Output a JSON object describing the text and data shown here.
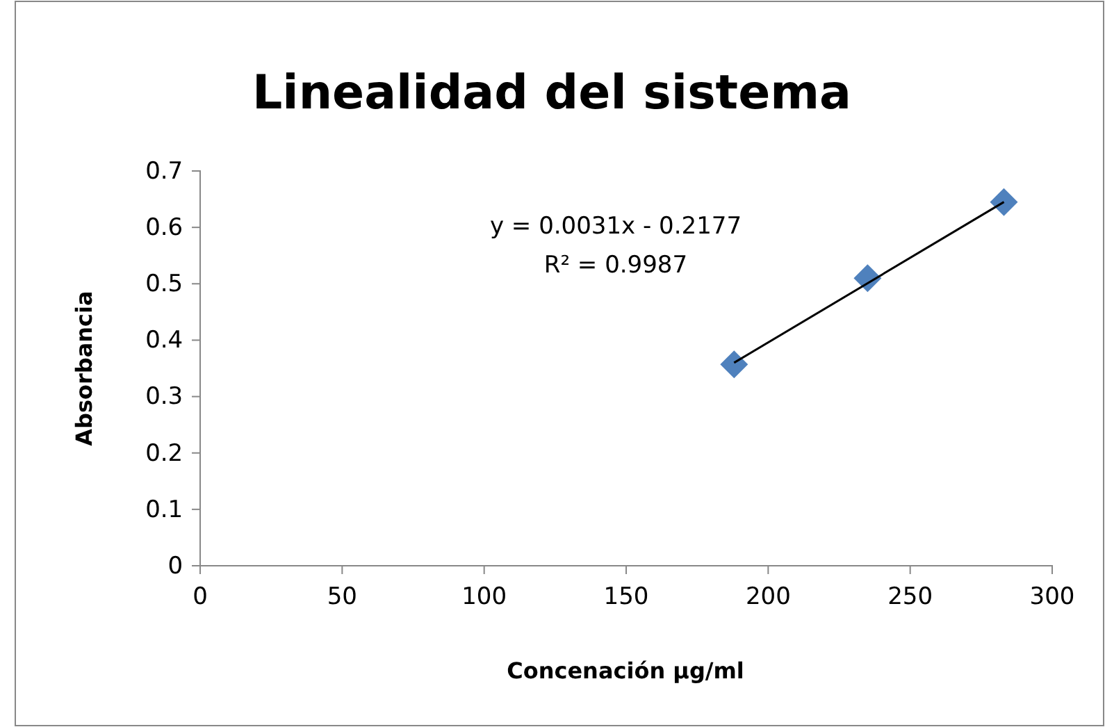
{
  "chart_data": {
    "type": "scatter",
    "title": "Linealidad del sistema",
    "xlabel": "Concenación µg/ml",
    "ylabel": "Absorbancia",
    "xlim": [
      0,
      300
    ],
    "xticks": [
      0,
      50,
      100,
      150,
      200,
      250,
      300
    ],
    "ylim": [
      0,
      0.7
    ],
    "yticks": [
      0,
      0.1,
      0.2,
      0.3,
      0.4,
      0.5,
      0.6,
      0.7
    ],
    "grid": false,
    "series": [
      {
        "color": "#4f81bd",
        "marker": "diamond",
        "x": [
          188,
          235,
          283
        ],
        "values": [
          0.357,
          0.51,
          0.645
        ]
      },
      {
        "type": "line",
        "color": "#000000",
        "x": [
          188,
          283
        ],
        "values": [
          0.36,
          0.645
        ],
        "marker": "none",
        "line_style": "solid"
      }
    ],
    "annotations": [
      "y = 0.0031x - 0.2177",
      "R² = 0.9987"
    ]
  }
}
